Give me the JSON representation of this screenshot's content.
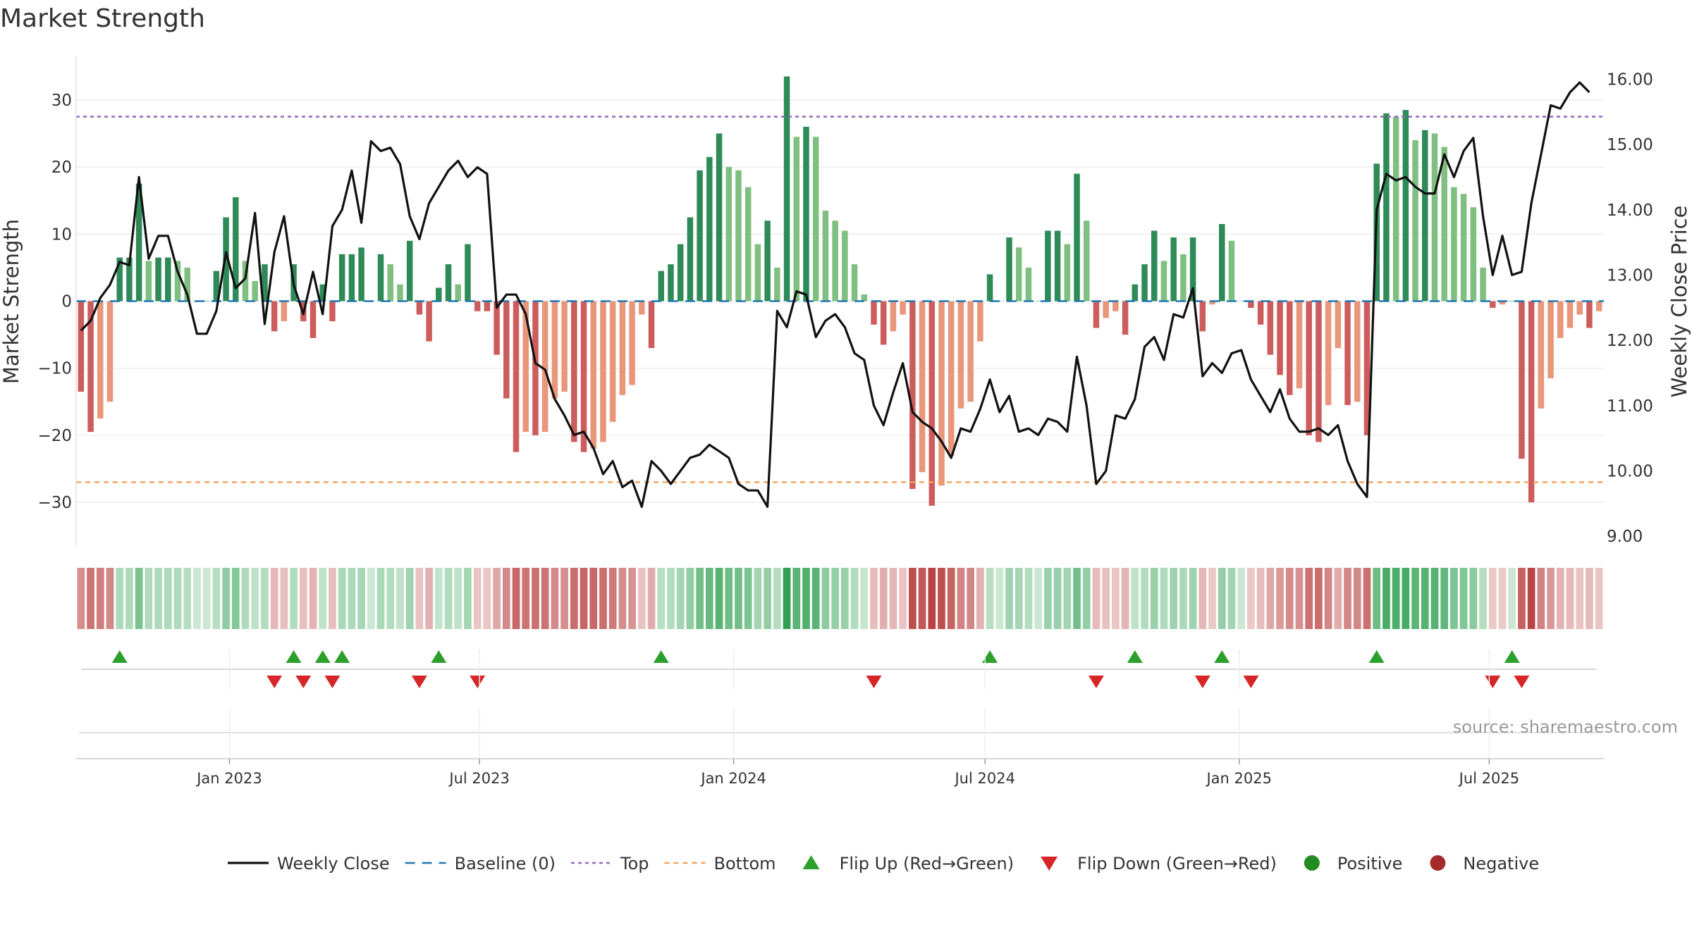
{
  "chart_data": {
    "type": "bar",
    "title": "Market Strength",
    "ylabel": "Market Strength",
    "y2label": "Weekly Close Price",
    "ylim": [
      -36.5,
      36.5
    ],
    "y2lim": [
      8.85,
      16.35
    ],
    "yticks": [
      30,
      20,
      10,
      0,
      -10,
      -20,
      -30
    ],
    "ytick_labels": [
      "30",
      "20",
      "10",
      "0",
      "−10",
      "−20",
      "−30"
    ],
    "y2ticks": [
      16.0,
      15.0,
      14.0,
      13.0,
      12.0,
      11.0,
      10.0,
      9.0
    ],
    "y2tick_labels": [
      "16.00",
      "15.00",
      "14.00",
      "13.00",
      "12.00",
      "11.00",
      "10.00",
      "9.00"
    ],
    "x_start": "2022-09-12",
    "x_end": "2025-09-22",
    "xticks": [
      {
        "label": "Jan 2023",
        "date": "2023-01-01"
      },
      {
        "label": "Jul 2023",
        "date": "2023-07-01"
      },
      {
        "label": "Jan 2024",
        "date": "2024-01-01"
      },
      {
        "label": "Jul 2024",
        "date": "2024-07-01"
      },
      {
        "label": "Jan 2025",
        "date": "2025-01-01"
      },
      {
        "label": "Jul 2025",
        "date": "2025-07-01"
      }
    ],
    "top_threshold": 27.5,
    "bottom_threshold": -27,
    "strength": [
      -13.5,
      -19.5,
      -17.5,
      -15,
      6.5,
      6.5,
      17.5,
      6,
      6.5,
      6.5,
      6,
      5,
      0,
      0,
      4.5,
      12.5,
      15.5,
      6,
      3,
      5.5,
      -4.5,
      -3,
      5.5,
      -3,
      -5.5,
      2.5,
      -3,
      7,
      7,
      8,
      0,
      7,
      5.5,
      2.5,
      9,
      -2,
      -6,
      2,
      5.5,
      2.5,
      8.5,
      -1.5,
      -1.5,
      -8,
      -14.5,
      -22.5,
      -19.5,
      -20,
      -19.5,
      -14.5,
      -13.5,
      -21,
      -22.5,
      -22,
      -21,
      -18,
      -14,
      -12.5,
      -2,
      -7,
      4.5,
      5.5,
      8.5,
      12.5,
      19.5,
      21.5,
      25,
      20,
      19.5,
      17,
      8.5,
      12,
      5,
      33.5,
      24.5,
      26,
      24.5,
      13.5,
      12,
      10.5,
      5.5,
      1,
      -3.5,
      -6.5,
      -4.5,
      -2,
      -28,
      -25.5,
      -30.5,
      -27.5,
      -23,
      -16,
      -15,
      -6,
      4,
      0,
      9.5,
      8,
      5,
      0,
      10.5,
      10.5,
      8.5,
      19,
      12,
      -4,
      -2.5,
      -1.5,
      -5,
      2.5,
      5.5,
      10.5,
      6,
      9.5,
      7,
      9.5,
      -4.5,
      -0.5,
      11.5,
      9,
      0,
      -1,
      -3.5,
      -8,
      -11,
      -14,
      -13,
      -20,
      -21,
      -15.5,
      -7,
      -15.5,
      -15,
      -20,
      20.5,
      28,
      27.5,
      28.5,
      24,
      25.5,
      25,
      23,
      17,
      16,
      14,
      5,
      -1,
      -0.5,
      0,
      -23.5,
      -30,
      -16,
      -11.5,
      -5.5,
      -4,
      -2,
      -4,
      -1.5
    ],
    "weekly_close": [
      12.15,
      12.3,
      12.65,
      12.85,
      13.2,
      13.15,
      14.5,
      13.25,
      13.6,
      13.6,
      13.05,
      12.7,
      12.1,
      12.1,
      12.45,
      13.35,
      12.8,
      12.95,
      13.95,
      12.25,
      13.35,
      13.9,
      12.85,
      12.4,
      13.05,
      12.4,
      13.75,
      14.0,
      14.6,
      13.8,
      15.05,
      14.9,
      14.95,
      14.7,
      13.9,
      13.55,
      14.1,
      14.35,
      14.6,
      14.75,
      14.5,
      14.65,
      14.55,
      12.5,
      12.7,
      12.7,
      12.4,
      11.65,
      11.55,
      11.1,
      10.85,
      10.55,
      10.6,
      10.35,
      9.95,
      10.15,
      9.75,
      9.85,
      9.45,
      10.15,
      10.0,
      9.8,
      10.0,
      10.2,
      10.25,
      10.4,
      10.3,
      10.2,
      9.8,
      9.7,
      9.7,
      9.45,
      12.45,
      12.2,
      12.75,
      12.7,
      12.05,
      12.3,
      12.4,
      12.2,
      11.8,
      11.7,
      11.0,
      10.7,
      11.2,
      11.65,
      10.9,
      10.75,
      10.65,
      10.45,
      10.2,
      10.65,
      10.6,
      10.95,
      11.4,
      10.9,
      11.15,
      10.6,
      10.65,
      10.55,
      10.8,
      10.75,
      10.6,
      11.75,
      11.0,
      9.8,
      10.0,
      10.85,
      10.8,
      11.1,
      11.9,
      12.05,
      11.7,
      12.4,
      12.35,
      12.8,
      11.45,
      11.65,
      11.5,
      11.8,
      11.85,
      11.4,
      11.15,
      10.9,
      11.25,
      10.8,
      10.6,
      10.6,
      10.65,
      10.55,
      10.7,
      10.15,
      9.8,
      9.6,
      14.0,
      14.55,
      14.45,
      14.5,
      14.35,
      14.25,
      14.25,
      14.85,
      14.5,
      14.9,
      15.1,
      13.9,
      13.0,
      13.6,
      13.0,
      13.05,
      14.1,
      14.85,
      15.6,
      15.55,
      15.8,
      15.95,
      15.8
    ],
    "strength_colors": {
      "pos_strong": "#2e8b57",
      "pos_weak": "#7fbf7f",
      "neg_strong": "#cd5c5c",
      "neg_weak": "#e9967a"
    },
    "line_color": "#111111",
    "baseline_color": "#1f77b4",
    "top_color": "#9467bd",
    "bottom_color": "#f4a460",
    "legend": [
      {
        "label": "Weekly Close",
        "symbol": "line"
      },
      {
        "label": "Baseline (0)",
        "symbol": "dash"
      },
      {
        "label": "Top",
        "symbol": "dot"
      },
      {
        "label": "Bottom",
        "symbol": "dot2"
      },
      {
        "label": "Flip Up (Red→Green)",
        "symbol": "tri-up"
      },
      {
        "label": "Flip Down (Green→Red)",
        "symbol": "tri-down"
      },
      {
        "label": "Positive",
        "symbol": "circle-green"
      },
      {
        "label": "Negative",
        "symbol": "circle-red"
      }
    ],
    "source": "source: sharemaestro.com"
  }
}
